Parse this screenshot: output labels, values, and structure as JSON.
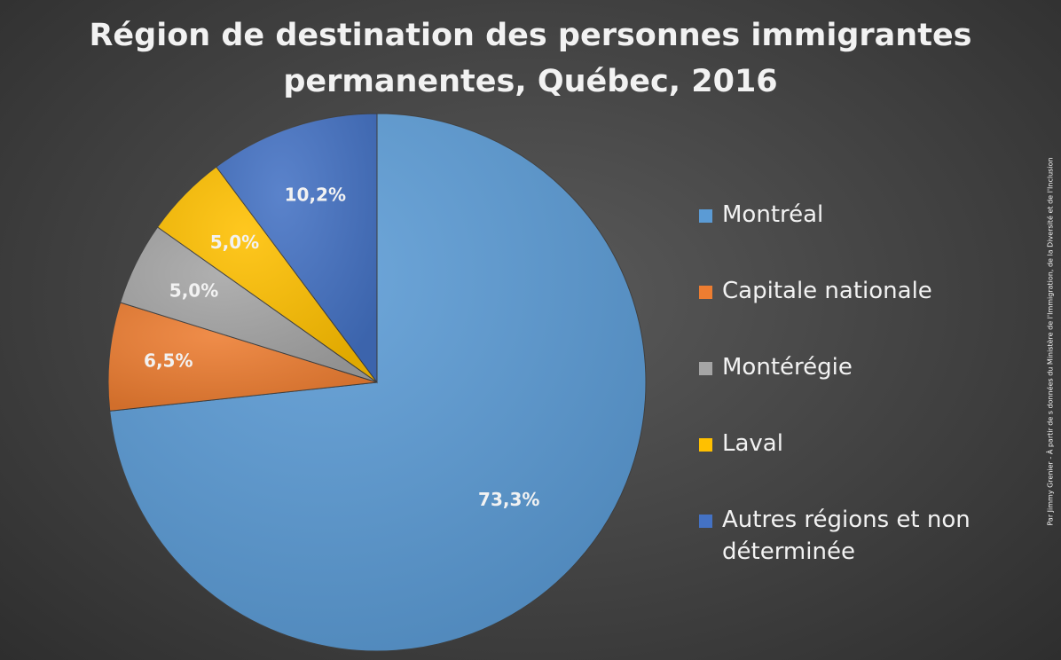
{
  "colors": {
    "montreal": "#5B9BD5",
    "capitale_nationale": "#ED7D31",
    "monteregie": "#A5A5A5",
    "laval": "#FFC000",
    "autres": "#4472C4",
    "text": "#F2F2F2"
  },
  "credit": "Par Jimmy Grenier - À partir de s données du Ministère de l'Immigration, de la Diversité et de l'Inclusion",
  "chart_data": {
    "type": "pie",
    "title": "Région de destination des personnes immigrantes permanentes, Québec, 2016",
    "title_lines": [
      "Région de destination des personnes immigrantes",
      "permanentes, Québec, 2016"
    ],
    "categories": [
      "Montréal",
      "Capitale nationale",
      "Montérégie",
      "Laval",
      "Autres régions et non déterminée"
    ],
    "values": [
      73.3,
      6.5,
      5.0,
      5.0,
      10.2
    ],
    "labels": [
      "73,3%",
      "6,5%",
      "5,0%",
      "5,0%",
      "10,2%"
    ],
    "legend_position": "right",
    "start": "12 o'clock, clockwise"
  }
}
